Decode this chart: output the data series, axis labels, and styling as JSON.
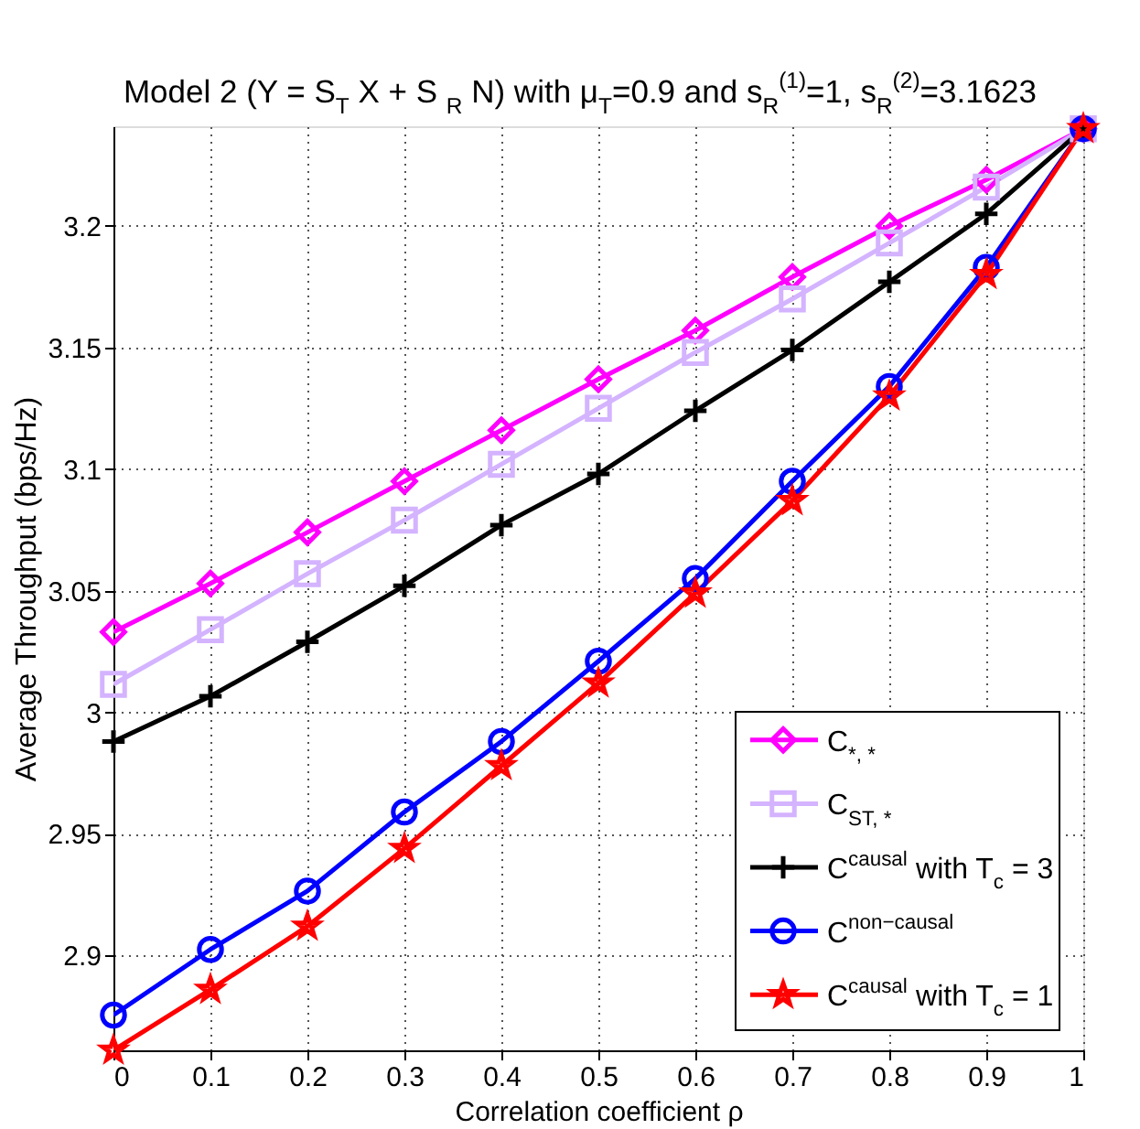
{
  "chart_data": {
    "type": "line",
    "title": "Model 2 (Y = S$_{T}$ X +  S$_{R}$ N) with μ$_{T}$=0.9 and s$_{R}$$^{(1)}$=1, s$_{R}$$^{(2)}$=3.1623",
    "xlabel": "Correlation coefficient ρ",
    "ylabel": "Average Throughput (bps/Hz)",
    "x": [
      0,
      0.1,
      0.2,
      0.3,
      0.4,
      0.5,
      0.6,
      0.7,
      0.8,
      0.9,
      1
    ],
    "series": [
      {
        "name": "C$_{*, *}$",
        "color": "#ff00ff",
        "marker": "diamond",
        "values": [
          3.033,
          3.053,
          3.074,
          3.095,
          3.116,
          3.137,
          3.157,
          3.179,
          3.2,
          3.219,
          3.24
        ]
      },
      {
        "name": "C$_{ST, *}$",
        "color": "#d4b3ff",
        "marker": "square",
        "values": [
          3.0115,
          3.034,
          3.057,
          3.079,
          3.102,
          3.125,
          3.148,
          3.17,
          3.193,
          3.216,
          3.24
        ]
      },
      {
        "name": "C$^{causal}$ with T$_{c}$ = 3",
        "color": "#000000",
        "marker": "cross",
        "values": [
          2.988,
          3.0066,
          3.029,
          3.052,
          3.077,
          3.098,
          3.124,
          3.149,
          3.177,
          3.205,
          3.24
        ]
      },
      {
        "name": "C$^{non−causal}$",
        "color": "#0000ff",
        "marker": "circle",
        "values": [
          2.8755,
          2.9025,
          2.9265,
          2.959,
          2.988,
          3.021,
          3.055,
          3.095,
          3.134,
          3.183,
          3.24
        ]
      },
      {
        "name": "C$^{causal}$ with T$_{c}$ = 1",
        "color": "#ff0000",
        "marker": "star",
        "values": [
          2.861,
          2.886,
          2.912,
          2.944,
          2.978,
          3.012,
          3.049,
          3.087,
          3.13,
          3.18,
          3.24
        ]
      }
    ],
    "xlim": [
      0,
      1
    ],
    "xticks": [
      0,
      0.1,
      0.2,
      0.3,
      0.4,
      0.5,
      0.6,
      0.7,
      0.8,
      0.9,
      1
    ],
    "ylim": [
      2.861,
      3.241
    ],
    "yticks": [
      2.9,
      2.95,
      3,
      3.05,
      3.1,
      3.15,
      3.2
    ],
    "grid": true,
    "legend": "bottom right",
    "line_style": "solid"
  }
}
